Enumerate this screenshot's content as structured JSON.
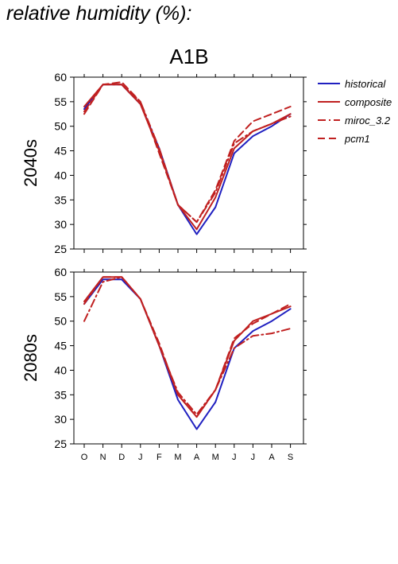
{
  "page_title": "relative humidity (%):",
  "scenario_title": "A1B",
  "colors": {
    "historical": "#2020c0",
    "composite": "#c02020",
    "miroc_3.2": "#c02020",
    "pcm1": "#c02020"
  },
  "legend": [
    {
      "label": "historical",
      "style": "solid",
      "color": "#2020c0"
    },
    {
      "label": "composite",
      "style": "solid",
      "color": "#c02020"
    },
    {
      "label": "miroc_3.2",
      "style": "dashdot",
      "color": "#c02020"
    },
    {
      "label": "pcm1",
      "style": "dashed",
      "color": "#c02020"
    }
  ],
  "chart_data": [
    {
      "type": "line",
      "panel_label": "2040s",
      "categories": [
        "O",
        "N",
        "D",
        "J",
        "F",
        "M",
        "A",
        "M",
        "J",
        "J",
        "A",
        "S"
      ],
      "ylim": [
        25,
        60
      ],
      "yticks": [
        25,
        30,
        35,
        40,
        45,
        50,
        55,
        60
      ],
      "grid": false,
      "series": [
        {
          "name": "historical",
          "style": "solid",
          "values": [
            53.5,
            58.5,
            58.5,
            54.5,
            45.5,
            34.0,
            28.0,
            33.5,
            44.5,
            48.0,
            50.0,
            52.5
          ]
        },
        {
          "name": "composite",
          "style": "solid",
          "values": [
            54.0,
            58.5,
            58.5,
            54.5,
            45.0,
            34.0,
            29.0,
            35.5,
            45.5,
            49.0,
            50.5,
            52.5
          ]
        },
        {
          "name": "miroc_3.2",
          "style": "dashdot",
          "values": [
            53.0,
            58.5,
            58.5,
            55.0,
            45.5,
            34.0,
            30.5,
            36.5,
            46.5,
            49.0,
            50.5,
            52.0
          ]
        },
        {
          "name": "pcm1",
          "style": "dashed",
          "values": [
            52.5,
            58.5,
            59.0,
            55.0,
            44.5,
            34.0,
            30.5,
            37.0,
            47.0,
            51.0,
            52.5,
            54.0
          ]
        }
      ]
    },
    {
      "type": "line",
      "panel_label": "2080s",
      "categories": [
        "O",
        "N",
        "D",
        "J",
        "F",
        "M",
        "A",
        "M",
        "J",
        "J",
        "A",
        "S"
      ],
      "ylim": [
        25,
        60
      ],
      "yticks": [
        25,
        30,
        35,
        40,
        45,
        50,
        55,
        60
      ],
      "grid": false,
      "series": [
        {
          "name": "historical",
          "style": "solid",
          "values": [
            53.5,
            58.5,
            58.5,
            54.5,
            45.0,
            34.0,
            28.0,
            33.5,
            44.5,
            48.0,
            50.0,
            52.5
          ]
        },
        {
          "name": "composite",
          "style": "solid",
          "values": [
            54.0,
            59.0,
            59.0,
            54.5,
            45.0,
            35.0,
            30.5,
            36.0,
            46.0,
            50.0,
            51.5,
            53.0
          ]
        },
        {
          "name": "miroc_3.2",
          "style": "dashdot",
          "values": [
            50.0,
            58.0,
            59.0,
            54.5,
            45.0,
            35.5,
            31.0,
            36.0,
            44.5,
            47.0,
            47.5,
            48.5
          ]
        },
        {
          "name": "pcm1",
          "style": "dashed",
          "values": [
            53.5,
            59.0,
            59.0,
            54.5,
            45.5,
            35.0,
            30.5,
            36.0,
            46.5,
            49.5,
            51.5,
            53.5
          ]
        }
      ]
    }
  ]
}
